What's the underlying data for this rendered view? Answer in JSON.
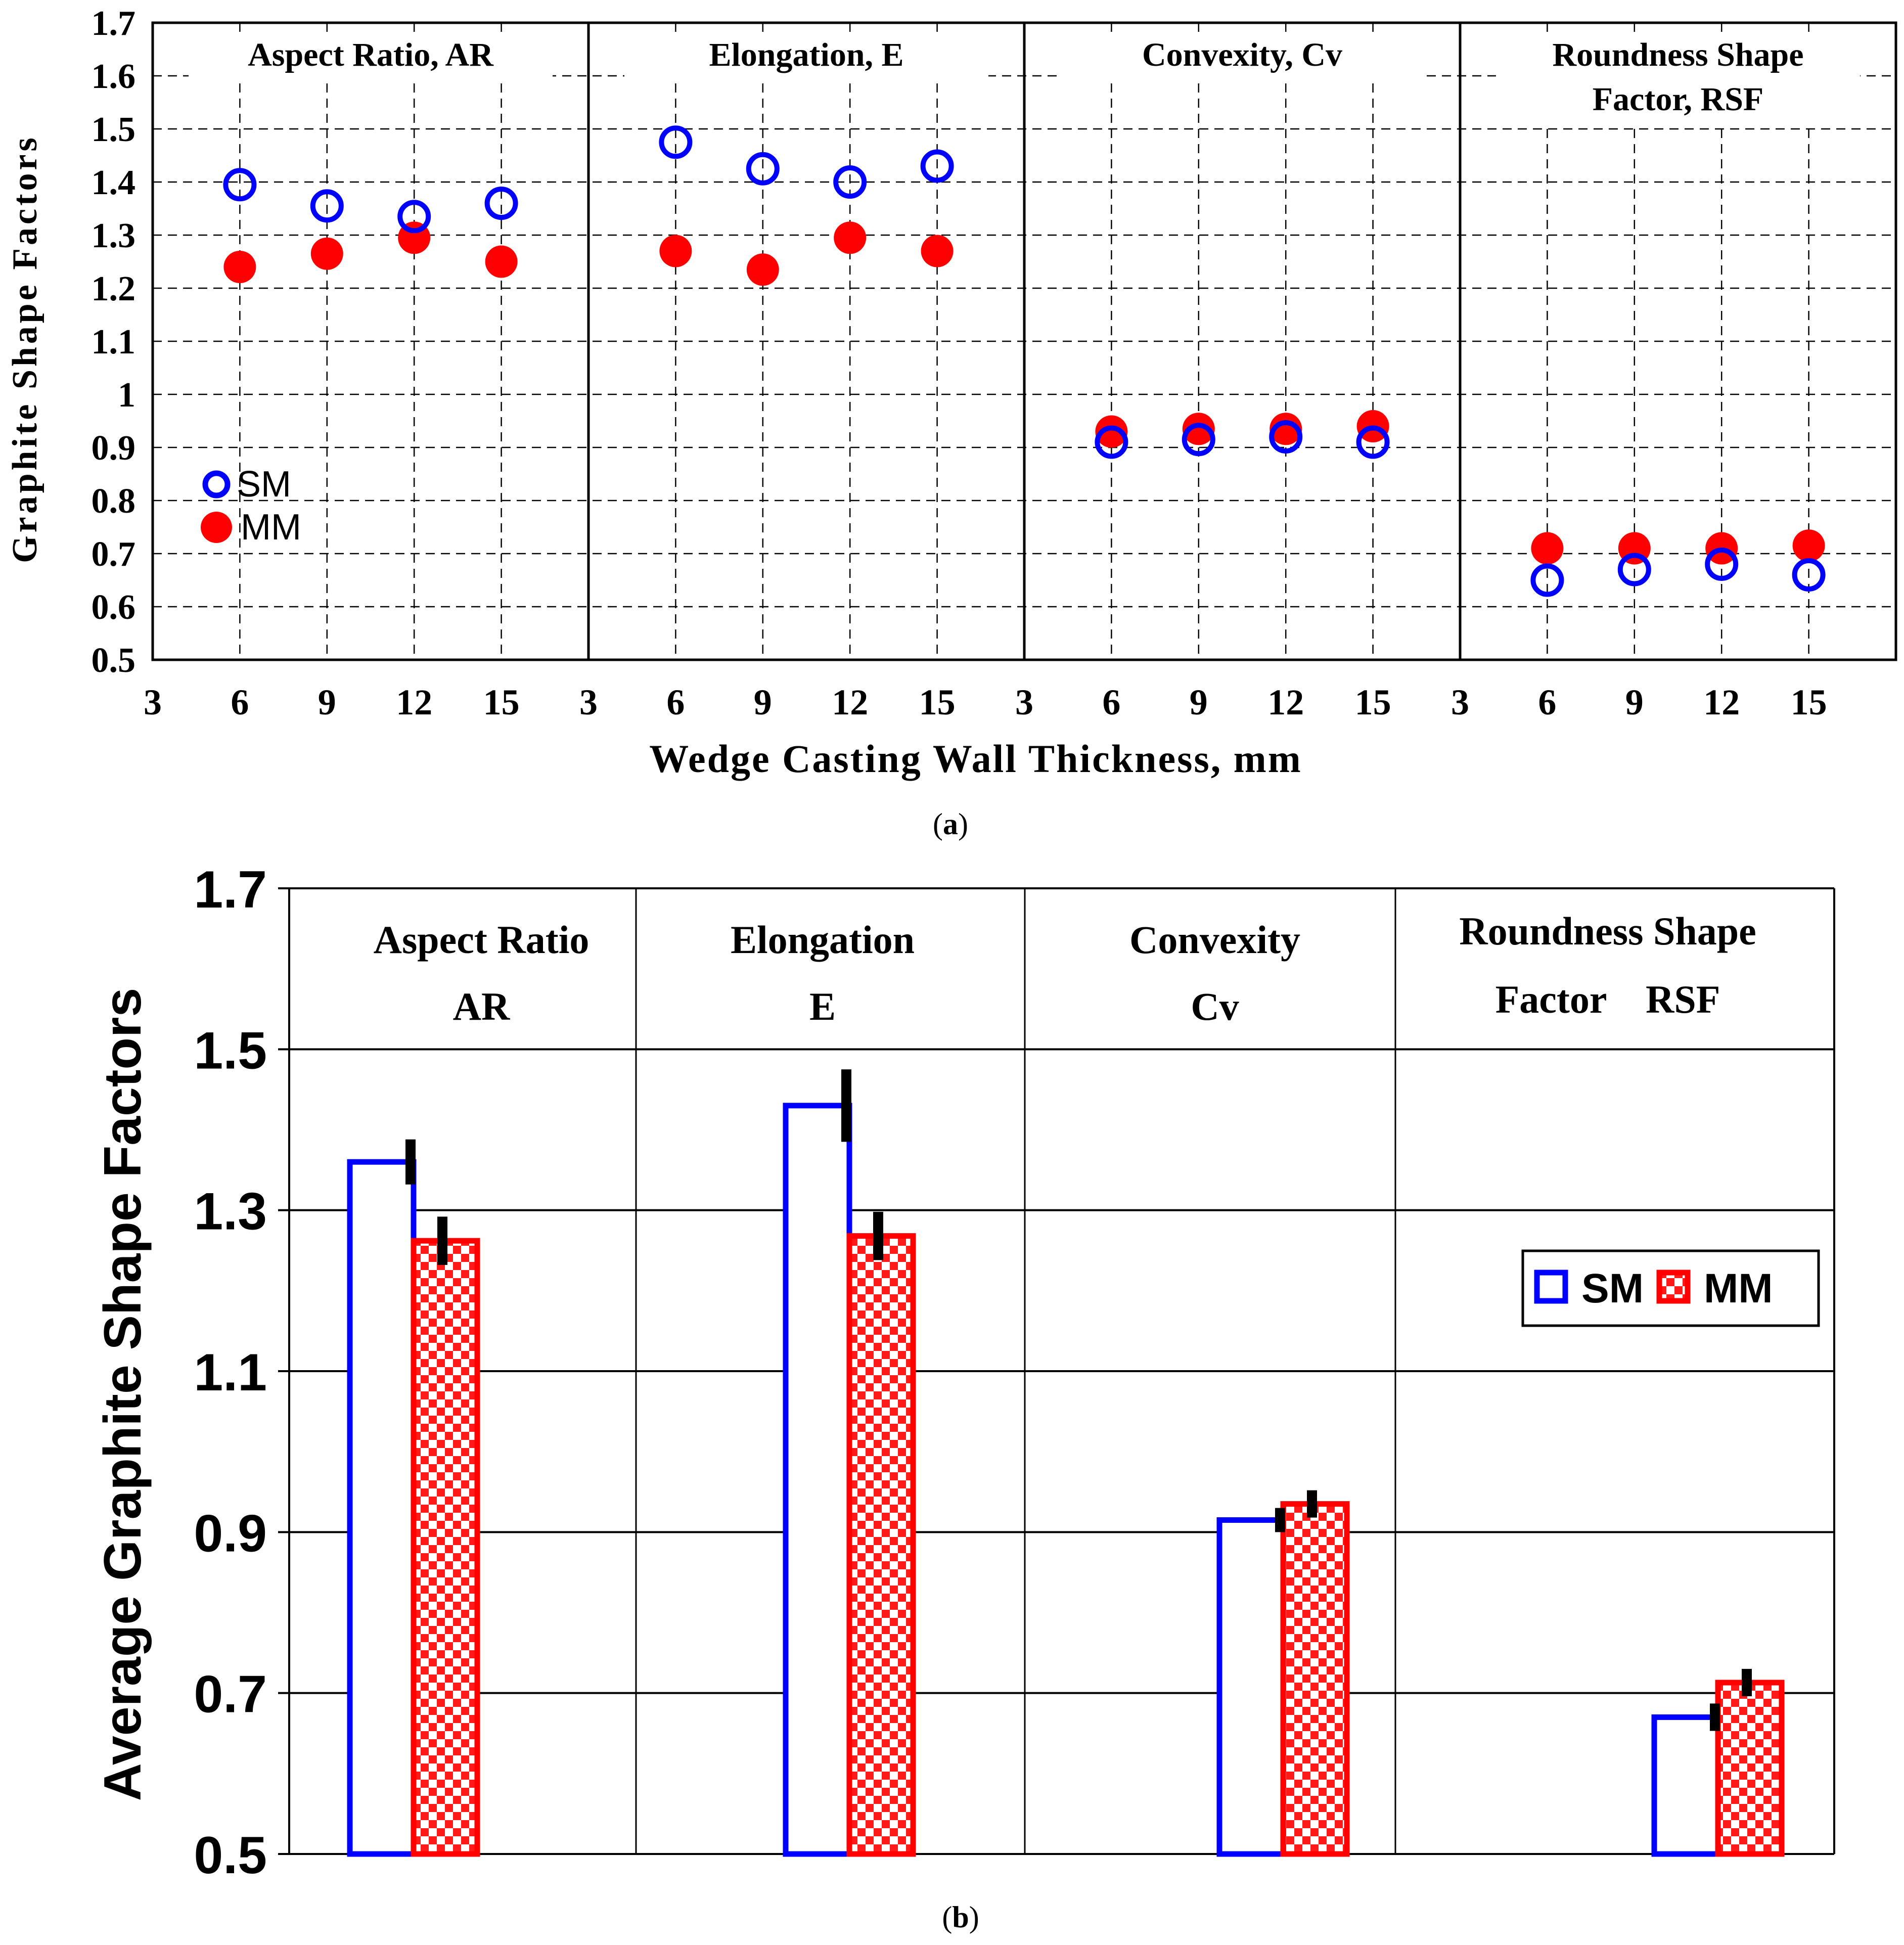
{
  "panel_a": {
    "caption_open": "(",
    "caption_letter": "a",
    "caption_close": ")",
    "ylabel": "Graphite Shape Factors",
    "xlabel": "Wedge Casting Wall Thickness, mm",
    "y_ticks": [
      "0.5",
      "0.6",
      "0.7",
      "0.8",
      "0.9",
      "1",
      "1.1",
      "1.2",
      "1.3",
      "1.4",
      "1.5",
      "1.6",
      "1.7"
    ],
    "x_ticks": [
      "3",
      "6",
      "9",
      "12",
      "15"
    ],
    "legend": [
      {
        "label": "SM",
        "marker": "open-circle",
        "color": "#0000ff"
      },
      {
        "label": "MM",
        "marker": "filled-circle",
        "color": "#ff0000"
      }
    ]
  },
  "panel_b": {
    "caption_open": "(",
    "caption_letter": "b",
    "caption_close": ")",
    "ylabel": "Average Graphite Shape Factors",
    "y_ticks": [
      "0.5",
      "0.7",
      "0.9",
      "1.1",
      "1.3",
      "1.5",
      "1.7"
    ],
    "legend": [
      {
        "label": "SM",
        "style": "open-bar",
        "color": "#0000ff"
      },
      {
        "label": "MM",
        "style": "checkered-bar",
        "color": "#ff0000"
      }
    ]
  },
  "chart_data": [
    {
      "type": "scatter",
      "title": "",
      "xlabel": "Wedge Casting Wall Thickness, mm",
      "ylabel": "Graphite Shape Factors",
      "ylim": [
        0.5,
        1.7
      ],
      "xlim": [
        3,
        18
      ],
      "grid": true,
      "legend_position": "bottom-left",
      "facets": [
        {
          "title_lines": [
            "Aspect Ratio, AR"
          ],
          "x": [
            6,
            9,
            12,
            15
          ],
          "series": [
            {
              "name": "SM",
              "values": [
                1.395,
                1.355,
                1.335,
                1.36
              ]
            },
            {
              "name": "MM",
              "values": [
                1.24,
                1.265,
                1.295,
                1.25
              ]
            }
          ]
        },
        {
          "title_lines": [
            "Elongation, E"
          ],
          "x": [
            6,
            9,
            12,
            15
          ],
          "series": [
            {
              "name": "SM",
              "values": [
                1.475,
                1.425,
                1.4,
                1.43
              ]
            },
            {
              "name": "MM",
              "values": [
                1.27,
                1.235,
                1.295,
                1.27
              ]
            }
          ]
        },
        {
          "title_lines": [
            "Convexity, Cv"
          ],
          "x": [
            6,
            9,
            12,
            15
          ],
          "series": [
            {
              "name": "SM",
              "values": [
                0.91,
                0.915,
                0.92,
                0.91
              ]
            },
            {
              "name": "MM",
              "values": [
                0.93,
                0.935,
                0.935,
                0.94
              ]
            }
          ]
        },
        {
          "title_lines": [
            "Roundness Shape",
            "Factor, RSF"
          ],
          "x": [
            6,
            9,
            12,
            15
          ],
          "series": [
            {
              "name": "SM",
              "values": [
                0.65,
                0.67,
                0.68,
                0.66
              ]
            },
            {
              "name": "MM",
              "values": [
                0.71,
                0.71,
                0.71,
                0.715
              ]
            }
          ]
        }
      ]
    },
    {
      "type": "bar",
      "title": "",
      "xlabel": "",
      "ylabel": "Average Graphite Shape Factors",
      "ylim": [
        0.5,
        1.7
      ],
      "grid": true,
      "legend_position": "right",
      "categories": [
        [
          "Aspect Ratio",
          "AR"
        ],
        [
          "Elongation",
          "E"
        ],
        [
          "Convexity",
          "Cv"
        ],
        [
          "Roundness Shape",
          "Factor    RSF"
        ]
      ],
      "series": [
        {
          "name": "SM",
          "values": [
            1.36,
            1.43,
            0.915,
            0.67
          ],
          "errors": [
            0.028,
            0.045,
            0.015,
            0.017
          ]
        },
        {
          "name": "MM",
          "values": [
            1.262,
            1.268,
            0.935,
            0.713
          ],
          "errors": [
            0.03,
            0.03,
            0.017,
            0.017
          ]
        }
      ]
    }
  ]
}
